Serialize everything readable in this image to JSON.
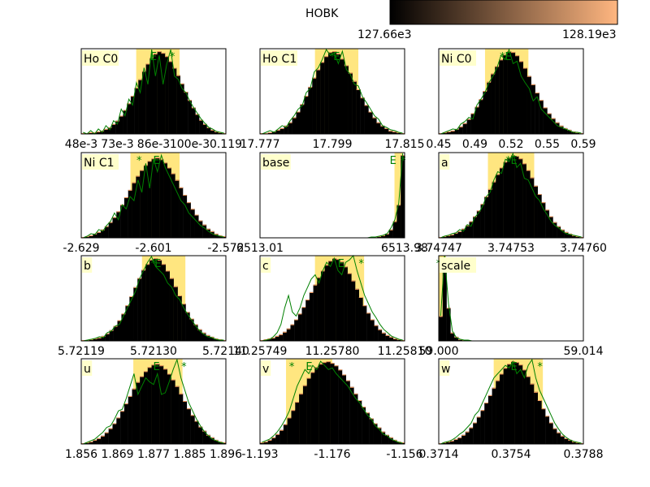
{
  "colorbar": {
    "label": "HOBK",
    "min_label": "127.66e3",
    "max_label": "128.19e3",
    "colors": [
      "#000000",
      "#ffb680"
    ]
  },
  "colors": {
    "ci_band": "#ffe680",
    "hist_fill": "#000000",
    "hist_edge": "#ffa060",
    "line": "#008000",
    "label_bg": "#ffffcc"
  },
  "chart_data": [
    {
      "type": "bar",
      "title": "Ho C0",
      "ticks": [
        "48e-3",
        "73e-3",
        "86e-3",
        "100e-3",
        "0.119"
      ],
      "ci": [
        0.38,
        0.68
      ],
      "values": [
        0.01,
        0.01,
        0.02,
        0.02,
        0.03,
        0.04,
        0.06,
        0.08,
        0.12,
        0.16,
        0.22,
        0.29,
        0.37,
        0.46,
        0.56,
        0.66,
        0.76,
        0.85,
        0.92,
        0.97,
        1.0,
        0.98,
        0.94,
        0.88,
        0.8,
        0.71,
        0.61,
        0.51,
        0.41,
        0.32,
        0.24,
        0.17,
        0.12,
        0.08,
        0.05,
        0.03,
        0.02,
        0.01
      ],
      "line": [
        0.02,
        0.0,
        0.04,
        0.0,
        0.06,
        0.02,
        0.1,
        0.05,
        0.16,
        0.12,
        0.3,
        0.22,
        0.42,
        0.35,
        0.62,
        0.5,
        0.8,
        0.6,
        1.02,
        0.7,
        0.95,
        0.6,
        0.85,
        1.02,
        0.7,
        0.66,
        0.55,
        0.5,
        0.4,
        0.32,
        0.25,
        0.18,
        0.13,
        0.08,
        0.06,
        0.03,
        0.02,
        0.01
      ],
      "markers": [
        {
          "label": "E",
          "pos": 0.5
        },
        {
          "label": "*",
          "pos": 0.63
        }
      ]
    },
    {
      "type": "bar",
      "title": "Ho C1",
      "ticks": [
        "17.777",
        "17.799",
        "17.815"
      ],
      "ci": [
        0.38,
        0.68
      ],
      "values": [
        0.01,
        0.01,
        0.02,
        0.03,
        0.05,
        0.07,
        0.1,
        0.14,
        0.2,
        0.27,
        0.36,
        0.46,
        0.57,
        0.68,
        0.78,
        0.87,
        0.94,
        0.99,
        1.0,
        0.97,
        0.91,
        0.83,
        0.74,
        0.64,
        0.54,
        0.44,
        0.35,
        0.27,
        0.2,
        0.14,
        0.1,
        0.07,
        0.04,
        0.03,
        0.02,
        0.01
      ],
      "line": [
        0.0,
        0.02,
        0.04,
        0.02,
        0.06,
        0.1,
        0.08,
        0.16,
        0.22,
        0.3,
        0.34,
        0.5,
        0.55,
        0.75,
        0.8,
        0.9,
        1.02,
        0.95,
        0.98,
        0.85,
        1.0,
        0.78,
        0.72,
        0.6,
        0.58,
        0.45,
        0.38,
        0.3,
        0.22,
        0.18,
        0.1,
        0.08,
        0.05,
        0.04,
        0.02,
        0.01
      ],
      "markers": [
        {
          "label": "*",
          "pos": 0.5
        },
        {
          "label": "E",
          "pos": 0.53
        }
      ]
    },
    {
      "type": "bar",
      "title": "Ni C0",
      "ticks": [
        "0.45",
        "0.49",
        "0.52",
        "0.55",
        "0.59"
      ],
      "ci": [
        0.32,
        0.62
      ],
      "values": [
        0.01,
        0.02,
        0.03,
        0.04,
        0.06,
        0.09,
        0.13,
        0.18,
        0.25,
        0.33,
        0.42,
        0.52,
        0.63,
        0.73,
        0.82,
        0.9,
        0.96,
        1.0,
        0.99,
        0.95,
        0.88,
        0.8,
        0.7,
        0.6,
        0.5,
        0.41,
        0.32,
        0.25,
        0.19,
        0.14,
        0.1,
        0.07,
        0.05,
        0.03,
        0.02,
        0.01
      ],
      "line": [
        0.0,
        0.02,
        0.04,
        0.06,
        0.05,
        0.12,
        0.15,
        0.2,
        0.18,
        0.35,
        0.42,
        0.5,
        0.62,
        0.7,
        0.8,
        0.95,
        0.9,
        1.02,
        0.85,
        0.88,
        0.7,
        0.62,
        0.55,
        0.4,
        0.45,
        0.3,
        0.25,
        0.2,
        0.15,
        0.1,
        0.08,
        0.06,
        0.04,
        0.02,
        0.02,
        0.01
      ],
      "markers": [
        {
          "label": "*",
          "pos": 0.44
        },
        {
          "label": "E",
          "pos": 0.48
        }
      ]
    },
    {
      "type": "bar",
      "title": "Ni C1",
      "ticks": [
        "-2.629",
        "-2.601",
        "-2.572"
      ],
      "ci": [
        0.34,
        0.68
      ],
      "values": [
        0.01,
        0.02,
        0.03,
        0.05,
        0.07,
        0.1,
        0.14,
        0.19,
        0.25,
        0.32,
        0.4,
        0.49,
        0.58,
        0.67,
        0.75,
        0.82,
        0.88,
        0.93,
        0.96,
        0.97,
        0.95,
        0.91,
        0.85,
        0.78,
        0.7,
        0.61,
        0.52,
        0.43,
        0.35,
        0.28,
        0.21,
        0.16,
        0.11,
        0.08,
        0.05,
        0.03,
        0.02
      ],
      "line": [
        0.0,
        0.02,
        0.05,
        0.04,
        0.1,
        0.08,
        0.15,
        0.2,
        0.3,
        0.22,
        0.4,
        0.35,
        0.5,
        0.45,
        0.7,
        0.55,
        0.9,
        0.6,
        0.95,
        0.8,
        1.0,
        0.85,
        0.75,
        0.65,
        0.55,
        0.45,
        0.4,
        0.3,
        0.25,
        0.2,
        0.15,
        0.12,
        0.08,
        0.05,
        0.03,
        0.02,
        0.01
      ],
      "markers": [
        {
          "label": "*",
          "pos": 0.4
        },
        {
          "label": "E",
          "pos": 0.52
        }
      ]
    },
    {
      "type": "bar",
      "title": "base",
      "ticks": [
        "6513.01",
        "6513.98"
      ],
      "ci": [
        0.93,
        0.99
      ],
      "values": [
        0,
        0,
        0,
        0,
        0,
        0,
        0,
        0,
        0,
        0,
        0,
        0,
        0,
        0,
        0,
        0,
        0,
        0,
        0,
        0,
        0,
        0,
        0,
        0,
        0,
        0,
        0,
        0,
        0.01,
        0.01,
        0.02,
        0.03,
        0.05,
        0.1,
        0.2,
        0.4,
        1.0
      ],
      "line": [
        0,
        0,
        0,
        0,
        0,
        0,
        0,
        0,
        0,
        0,
        0,
        0,
        0,
        0,
        0,
        0,
        0,
        0,
        0,
        0,
        0,
        0,
        0,
        0,
        0,
        0,
        0,
        0,
        0.01,
        0.01,
        0.02,
        0.03,
        0.05,
        0.12,
        0.22,
        0.42,
        1.02
      ],
      "markers": [
        {
          "label": "E",
          "pos": 0.92
        },
        {
          "label": "*",
          "pos": 0.99
        }
      ]
    },
    {
      "type": "bar",
      "title": "a",
      "ticks": [
        "3.74747",
        "3.74753",
        "3.74760"
      ],
      "ci": [
        0.34,
        0.66
      ],
      "values": [
        0.01,
        0.02,
        0.03,
        0.04,
        0.06,
        0.08,
        0.11,
        0.15,
        0.2,
        0.26,
        0.33,
        0.41,
        0.5,
        0.59,
        0.68,
        0.77,
        0.85,
        0.92,
        0.97,
        1.0,
        0.99,
        0.96,
        0.9,
        0.82,
        0.73,
        0.63,
        0.53,
        0.43,
        0.34,
        0.26,
        0.19,
        0.14,
        0.1,
        0.07,
        0.05,
        0.03,
        0.02,
        0.01
      ],
      "line": [
        0.0,
        0.02,
        0.03,
        0.05,
        0.06,
        0.1,
        0.08,
        0.16,
        0.14,
        0.25,
        0.3,
        0.38,
        0.5,
        0.55,
        0.7,
        0.8,
        0.78,
        0.95,
        0.92,
        1.02,
        0.85,
        0.9,
        0.72,
        0.7,
        0.6,
        0.5,
        0.45,
        0.35,
        0.28,
        0.2,
        0.15,
        0.12,
        0.08,
        0.05,
        0.04,
        0.03,
        0.02,
        0.01
      ],
      "markers": [
        {
          "label": "*",
          "pos": 0.48
        },
        {
          "label": "E",
          "pos": 0.52
        }
      ]
    },
    {
      "type": "bar",
      "title": "b",
      "ticks": [
        "5.72119",
        "5.72130",
        "5.72140"
      ],
      "ci": [
        0.42,
        0.72
      ],
      "values": [
        0.01,
        0.01,
        0.02,
        0.03,
        0.04,
        0.06,
        0.09,
        0.13,
        0.18,
        0.25,
        0.33,
        0.43,
        0.54,
        0.65,
        0.76,
        0.86,
        0.93,
        0.98,
        1.0,
        0.98,
        0.93,
        0.85,
        0.76,
        0.66,
        0.55,
        0.45,
        0.35,
        0.27,
        0.2,
        0.14,
        0.1,
        0.07,
        0.05,
        0.03,
        0.02,
        0.01
      ],
      "line": [
        0.0,
        0.01,
        0.02,
        0.03,
        0.05,
        0.04,
        0.1,
        0.12,
        0.18,
        0.2,
        0.3,
        0.4,
        0.5,
        0.6,
        0.75,
        0.85,
        0.95,
        1.02,
        0.9,
        0.85,
        0.8,
        0.7,
        0.65,
        0.55,
        0.5,
        0.4,
        0.32,
        0.25,
        0.18,
        0.12,
        0.08,
        0.05,
        0.04,
        0.02,
        0.01,
        0.01
      ],
      "markers": [
        {
          "label": "*",
          "pos": 0.5
        },
        {
          "label": "E",
          "pos": 0.53
        }
      ]
    },
    {
      "type": "bar",
      "title": "c",
      "ticks": [
        "11.25749",
        "11.25780",
        "11.25810"
      ],
      "ci": [
        0.38,
        0.72
      ],
      "values": [
        0.01,
        0.02,
        0.03,
        0.04,
        0.06,
        0.08,
        0.11,
        0.15,
        0.2,
        0.26,
        0.33,
        0.41,
        0.5,
        0.59,
        0.68,
        0.77,
        0.85,
        0.92,
        0.97,
        1.0,
        0.99,
        0.96,
        0.9,
        0.82,
        0.73,
        0.63,
        0.53,
        0.43,
        0.34,
        0.26,
        0.19,
        0.14,
        0.1,
        0.07,
        0.05,
        0.03,
        0.02,
        0.01
      ],
      "line": [
        0.0,
        0.01,
        0.02,
        0.05,
        0.1,
        0.2,
        0.4,
        0.55,
        0.35,
        0.3,
        0.4,
        0.55,
        0.65,
        0.75,
        0.8,
        0.7,
        0.85,
        0.95,
        0.9,
        1.0,
        0.85,
        0.8,
        0.95,
        0.98,
        1.05,
        0.85,
        0.7,
        0.55,
        0.45,
        0.35,
        0.28,
        0.2,
        0.14,
        0.1,
        0.06,
        0.04,
        0.02,
        0.01
      ],
      "markers": [
        {
          "label": "E",
          "pos": 0.56
        },
        {
          "label": "*",
          "pos": 0.7
        }
      ]
    },
    {
      "type": "bar",
      "title": "scale",
      "ticks": [
        "59.000",
        "59.014"
      ],
      "ci": [
        0.0,
        0.05
      ],
      "values": [
        0.3,
        1.0,
        0.4,
        0.1,
        0.05,
        0.02,
        0.01,
        0.01,
        0,
        0,
        0,
        0,
        0,
        0,
        0,
        0,
        0,
        0,
        0,
        0,
        0,
        0,
        0,
        0,
        0,
        0,
        0,
        0,
        0,
        0,
        0,
        0,
        0,
        0,
        0,
        0,
        0
      ],
      "line": [
        0.3,
        1.05,
        0.45,
        0.12,
        0.04,
        0.02,
        0.01,
        0.01,
        0,
        0,
        0,
        0,
        0,
        0,
        0,
        0,
        0,
        0,
        0,
        0,
        0,
        0,
        0,
        0,
        0,
        0,
        0,
        0,
        0,
        0,
        0,
        0,
        0,
        0,
        0,
        0,
        0
      ],
      "markers": [
        {
          "label": "*",
          "pos": 0.0
        },
        {
          "label": "*",
          "pos": 0.08
        },
        {
          "label": "E",
          "pos": 0.13
        }
      ]
    },
    {
      "type": "bar",
      "title": "u",
      "ticks": [
        "1.856",
        "1.869",
        "1.877",
        "1.885",
        "1.896"
      ],
      "ci": [
        0.36,
        0.7
      ],
      "values": [
        0.01,
        0.02,
        0.03,
        0.05,
        0.07,
        0.1,
        0.14,
        0.19,
        0.25,
        0.32,
        0.4,
        0.49,
        0.58,
        0.67,
        0.75,
        0.82,
        0.88,
        0.93,
        0.96,
        0.97,
        0.95,
        0.91,
        0.85,
        0.78,
        0.7,
        0.61,
        0.52,
        0.43,
        0.35,
        0.28,
        0.21,
        0.16,
        0.11,
        0.08,
        0.05,
        0.03,
        0.02
      ],
      "line": [
        0.0,
        0.02,
        0.04,
        0.06,
        0.1,
        0.14,
        0.2,
        0.22,
        0.3,
        0.4,
        0.42,
        0.55,
        0.7,
        0.85,
        0.6,
        0.7,
        0.8,
        0.75,
        0.72,
        0.85,
        0.6,
        0.62,
        0.75,
        0.9,
        1.02,
        0.8,
        0.65,
        0.5,
        0.4,
        0.3,
        0.22,
        0.15,
        0.1,
        0.06,
        0.04,
        0.02,
        0.01
      ],
      "markers": [
        {
          "label": "E",
          "pos": 0.52
        },
        {
          "label": "*",
          "pos": 0.71
        }
      ]
    },
    {
      "type": "bar",
      "title": "v",
      "ticks": [
        "-1.193",
        "-1.176",
        "-1.156"
      ],
      "ci": [
        0.18,
        0.5
      ],
      "values": [
        0.02,
        0.03,
        0.05,
        0.08,
        0.12,
        0.17,
        0.24,
        0.32,
        0.41,
        0.51,
        0.61,
        0.71,
        0.8,
        0.87,
        0.93,
        0.97,
        0.99,
        1.0,
        0.98,
        0.95,
        0.9,
        0.84,
        0.77,
        0.69,
        0.61,
        0.53,
        0.45,
        0.38,
        0.31,
        0.25,
        0.2,
        0.15,
        0.11,
        0.08,
        0.05,
        0.03,
        0.02
      ],
      "line": [
        0.02,
        0.04,
        0.06,
        0.1,
        0.15,
        0.22,
        0.3,
        0.4,
        0.55,
        0.7,
        0.8,
        0.9,
        0.85,
        0.95,
        0.9,
        1.0,
        0.95,
        0.9,
        0.92,
        0.85,
        0.8,
        0.75,
        0.7,
        0.62,
        0.55,
        0.5,
        0.42,
        0.35,
        0.3,
        0.22,
        0.18,
        0.12,
        0.1,
        0.06,
        0.04,
        0.02,
        0.01
      ],
      "markers": [
        {
          "label": "*",
          "pos": 0.22
        },
        {
          "label": "E",
          "pos": 0.34
        }
      ]
    },
    {
      "type": "bar",
      "title": "w",
      "ticks": [
        "0.3714",
        "0.3754",
        "0.3788"
      ],
      "ci": [
        0.38,
        0.72
      ],
      "values": [
        0.01,
        0.02,
        0.03,
        0.04,
        0.06,
        0.08,
        0.11,
        0.15,
        0.2,
        0.26,
        0.33,
        0.41,
        0.5,
        0.59,
        0.68,
        0.77,
        0.85,
        0.92,
        0.97,
        1.0,
        0.99,
        0.96,
        0.9,
        0.82,
        0.73,
        0.63,
        0.53,
        0.43,
        0.34,
        0.26,
        0.19,
        0.14,
        0.1,
        0.07,
        0.05,
        0.03,
        0.02,
        0.01
      ],
      "line": [
        0.0,
        0.02,
        0.03,
        0.05,
        0.08,
        0.12,
        0.15,
        0.2,
        0.25,
        0.35,
        0.4,
        0.5,
        0.6,
        0.7,
        0.8,
        0.85,
        0.9,
        0.95,
        0.92,
        1.0,
        0.85,
        0.9,
        0.8,
        0.95,
        1.02,
        0.8,
        0.65,
        0.55,
        0.45,
        0.35,
        0.25,
        0.18,
        0.12,
        0.08,
        0.05,
        0.03,
        0.02,
        0.01
      ],
      "markers": [
        {
          "label": "E",
          "pos": 0.52
        },
        {
          "label": "*",
          "pos": 0.7
        }
      ]
    }
  ]
}
